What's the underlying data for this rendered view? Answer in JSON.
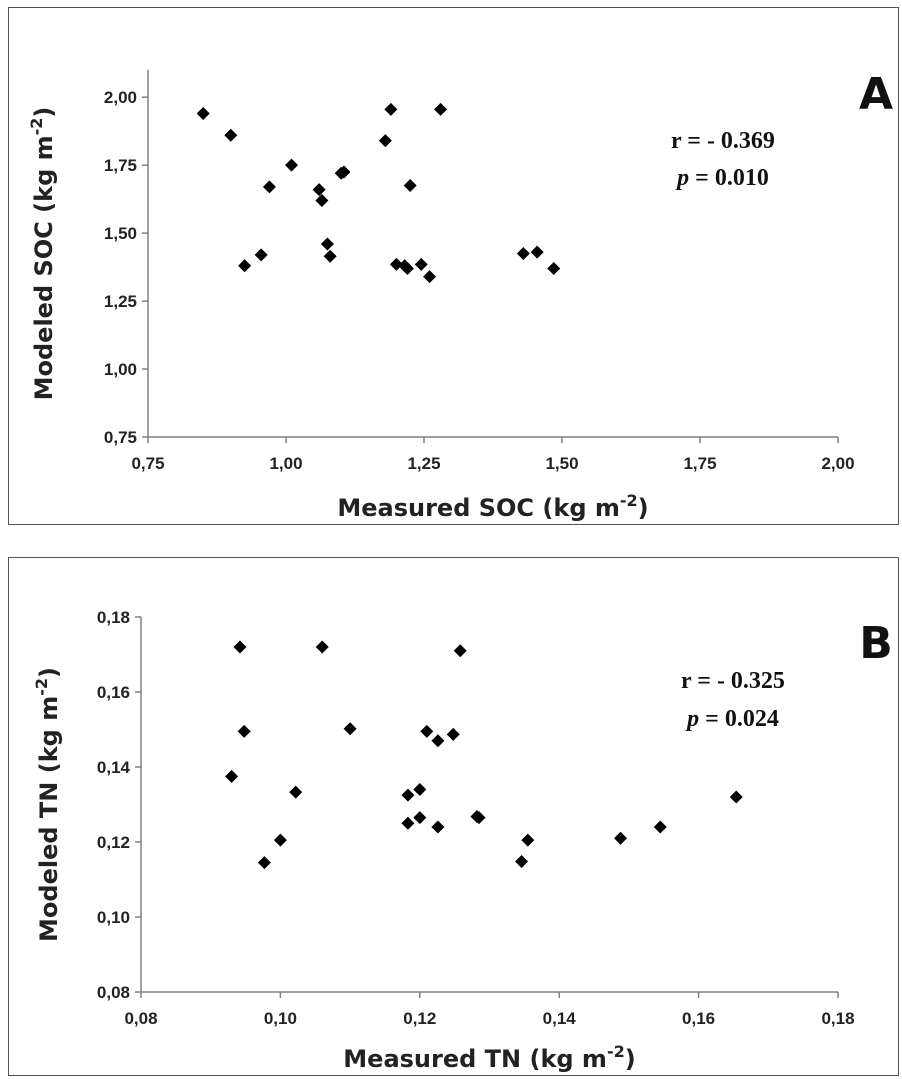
{
  "chart_data": [
    {
      "type": "scatter",
      "panel_label": "A",
      "xlabel": "Measured SOC (kg m",
      "ylabel": "Modeled SOC (kg m",
      "label_unit_exponent": "-2",
      "label_close": ")",
      "xlim": [
        0.75,
        2.0
      ],
      "ylim": [
        0.75,
        2.1
      ],
      "x_ticks": [
        0.75,
        1.0,
        1.25,
        1.5,
        1.75,
        2.0
      ],
      "x_tick_labels": [
        "0,75",
        "1,00",
        "1,25",
        "1,50",
        "1,75",
        "2,00"
      ],
      "y_ticks": [
        0.75,
        1.0,
        1.25,
        1.5,
        1.75,
        2.0
      ],
      "y_tick_labels": [
        "0,75",
        "1,00",
        "1,25",
        "1,50",
        "1,75",
        "2,00"
      ],
      "grid": false,
      "marker": "diamond",
      "marker_color": "#000000",
      "annotations": {
        "r_text": "r = - 0.369",
        "p_symbol": "p",
        "p_rest": " = 0.010"
      },
      "points": [
        {
          "x": 0.85,
          "y": 1.94
        },
        {
          "x": 0.9,
          "y": 1.86
        },
        {
          "x": 0.925,
          "y": 1.38
        },
        {
          "x": 0.955,
          "y": 1.42
        },
        {
          "x": 0.97,
          "y": 1.67
        },
        {
          "x": 1.01,
          "y": 1.75
        },
        {
          "x": 1.06,
          "y": 1.66
        },
        {
          "x": 1.065,
          "y": 1.62
        },
        {
          "x": 1.075,
          "y": 1.46
        },
        {
          "x": 1.08,
          "y": 1.415
        },
        {
          "x": 1.1,
          "y": 1.72
        },
        {
          "x": 1.105,
          "y": 1.725
        },
        {
          "x": 1.18,
          "y": 1.84
        },
        {
          "x": 1.19,
          "y": 1.955
        },
        {
          "x": 1.2,
          "y": 1.385
        },
        {
          "x": 1.215,
          "y": 1.38
        },
        {
          "x": 1.22,
          "y": 1.37
        },
        {
          "x": 1.225,
          "y": 1.675
        },
        {
          "x": 1.245,
          "y": 1.385
        },
        {
          "x": 1.26,
          "y": 1.34
        },
        {
          "x": 1.28,
          "y": 1.955
        },
        {
          "x": 1.43,
          "y": 1.425
        },
        {
          "x": 1.455,
          "y": 1.43
        },
        {
          "x": 1.485,
          "y": 1.37
        }
      ]
    },
    {
      "type": "scatter",
      "panel_label": "B",
      "xlabel": "Measured TN (kg m",
      "ylabel": "Modeled TN (kg m",
      "label_unit_exponent": "-2",
      "label_close": ")",
      "xlim": [
        0.08,
        0.18
      ],
      "ylim": [
        0.08,
        0.18
      ],
      "x_ticks": [
        0.08,
        0.1,
        0.12,
        0.14,
        0.16,
        0.18
      ],
      "x_tick_labels": [
        "0,08",
        "0,10",
        "0,12",
        "0,14",
        "0,16",
        "0,18"
      ],
      "y_ticks": [
        0.08,
        0.1,
        0.12,
        0.14,
        0.16,
        0.18
      ],
      "y_tick_labels": [
        "0,08",
        "0,10",
        "0,12",
        "0,14",
        "0,16",
        "0,18"
      ],
      "grid": false,
      "marker": "diamond",
      "marker_color": "#000000",
      "annotations": {
        "r_text": "r = - 0.325",
        "p_symbol": "p",
        "p_rest": " = 0.024"
      },
      "points": [
        {
          "x": 0.093,
          "y": 0.1375
        },
        {
          "x": 0.0942,
          "y": 0.172
        },
        {
          "x": 0.0948,
          "y": 0.1495
        },
        {
          "x": 0.0977,
          "y": 0.1145
        },
        {
          "x": 0.1,
          "y": 0.1205
        },
        {
          "x": 0.1022,
          "y": 0.1333
        },
        {
          "x": 0.106,
          "y": 0.172
        },
        {
          "x": 0.11,
          "y": 0.1502
        },
        {
          "x": 0.1183,
          "y": 0.1325
        },
        {
          "x": 0.1183,
          "y": 0.125
        },
        {
          "x": 0.12,
          "y": 0.134
        },
        {
          "x": 0.12,
          "y": 0.1265
        },
        {
          "x": 0.121,
          "y": 0.1495
        },
        {
          "x": 0.1226,
          "y": 0.147
        },
        {
          "x": 0.1226,
          "y": 0.124
        },
        {
          "x": 0.1248,
          "y": 0.1487
        },
        {
          "x": 0.1258,
          "y": 0.171
        },
        {
          "x": 0.1282,
          "y": 0.1268
        },
        {
          "x": 0.1285,
          "y": 0.1265
        },
        {
          "x": 0.1346,
          "y": 0.1148
        },
        {
          "x": 0.1355,
          "y": 0.1205
        },
        {
          "x": 0.1488,
          "y": 0.121
        },
        {
          "x": 0.1545,
          "y": 0.124
        },
        {
          "x": 0.1654,
          "y": 0.132
        }
      ]
    }
  ]
}
